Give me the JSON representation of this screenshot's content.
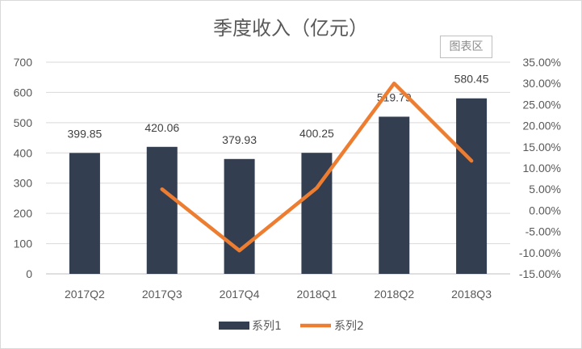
{
  "chart_data": {
    "type": "bar",
    "title": "季度收入（亿元）",
    "categories": [
      "2017Q2",
      "2017Q3",
      "2017Q4",
      "2018Q1",
      "2018Q2",
      "2018Q3"
    ],
    "series": [
      {
        "name": "系列1",
        "kind": "bar",
        "axis": "left",
        "color": "#333f50",
        "values": [
          399.85,
          420.06,
          379.93,
          400.25,
          519.79,
          580.45
        ],
        "data_labels": [
          "399.85",
          "420.06",
          "379.93",
          "400.25",
          "519.79",
          "580.45"
        ]
      },
      {
        "name": "系列2",
        "kind": "line",
        "axis": "right",
        "color": "#ed7d31",
        "values": [
          null,
          0.05,
          -0.095,
          0.053,
          0.3,
          0.117
        ]
      }
    ],
    "y_left": {
      "ylim": [
        0,
        700
      ],
      "ticks": [
        0,
        100,
        200,
        300,
        400,
        500,
        600,
        700
      ],
      "tick_labels": [
        "0",
        "100",
        "200",
        "300",
        "400",
        "500",
        "600",
        "700"
      ]
    },
    "y_right": {
      "ylim": [
        -0.15,
        0.35
      ],
      "ticks": [
        -0.15,
        -0.1,
        -0.05,
        0.0,
        0.05,
        0.1,
        0.15,
        0.2,
        0.25,
        0.3,
        0.35
      ],
      "tick_labels": [
        "-15.00%",
        "-10.00%",
        "-5.00%",
        "0.00%",
        "5.00%",
        "10.00%",
        "15.00%",
        "20.00%",
        "25.00%",
        "30.00%",
        "35.00%"
      ]
    },
    "grid": true,
    "legend_position": "bottom"
  },
  "watermark": "图表区"
}
